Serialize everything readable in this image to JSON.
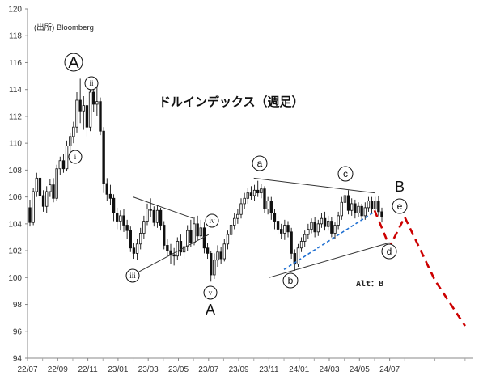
{
  "chart_data": {
    "type": "candlestick",
    "title": "ドルインデックス（週足）",
    "source": "(出所)  Bloomberg",
    "alt_note": "Alt：B",
    "ylim": [
      94,
      120
    ],
    "y_ticks": [
      "94",
      "96",
      "98",
      "100",
      "102",
      "104",
      "106",
      "108",
      "110",
      "112",
      "114",
      "116",
      "118",
      "120"
    ],
    "x_ticks": [
      "22/07",
      "22/09",
      "22/11",
      "23/01",
      "23/03",
      "23/05",
      "23/07",
      "23/09",
      "23/11",
      "24/01",
      "24/03",
      "24/05",
      "24/07"
    ],
    "grid": false,
    "colors": {
      "candle": "#111111",
      "forecast": "#cc0000",
      "trend_blue": "#1f6fd1",
      "trendline": "#333333"
    },
    "candles": [
      [
        105.2,
        104.1,
        105.8,
        103.8
      ],
      [
        104.1,
        106.4,
        106.7,
        103.9
      ],
      [
        106.4,
        107.4,
        107.8,
        106.0
      ],
      [
        107.4,
        106.1,
        108.0,
        105.7
      ],
      [
        106.1,
        105.3,
        106.5,
        104.9
      ],
      [
        105.3,
        106.4,
        106.8,
        104.8
      ],
      [
        106.4,
        106.9,
        107.3,
        106.0
      ],
      [
        106.9,
        105.9,
        107.4,
        105.6
      ],
      [
        105.9,
        108.1,
        108.4,
        105.7
      ],
      [
        108.1,
        108.7,
        109.0,
        107.6
      ],
      [
        108.7,
        108.1,
        109.2,
        107.8
      ],
      [
        108.1,
        109.8,
        110.2,
        107.9
      ],
      [
        109.8,
        110.5,
        110.8,
        109.2
      ],
      [
        110.5,
        111.2,
        111.6,
        110.0
      ],
      [
        111.2,
        113.2,
        113.8,
        110.8
      ],
      [
        113.2,
        112.4,
        114.8,
        111.5
      ],
      [
        112.4,
        112.8,
        113.5,
        111.0
      ],
      [
        112.8,
        111.2,
        113.4,
        110.5
      ],
      [
        111.2,
        113.8,
        114.1,
        110.9
      ],
      [
        113.8,
        112.9,
        114.6,
        112.3
      ],
      [
        112.9,
        113.1,
        114.2,
        112.0
      ],
      [
        113.1,
        110.9,
        113.4,
        110.6
      ],
      [
        110.9,
        107.0,
        111.2,
        106.3
      ],
      [
        107.0,
        106.2,
        107.4,
        105.7
      ],
      [
        106.2,
        105.9,
        106.9,
        105.4
      ],
      [
        105.9,
        104.8,
        106.2,
        104.2
      ],
      [
        104.8,
        104.2,
        105.2,
        103.6
      ],
      [
        104.2,
        104.6,
        105.0,
        103.5
      ],
      [
        104.6,
        103.9,
        105.1,
        103.4
      ],
      [
        103.9,
        103.5,
        104.3,
        102.9
      ],
      [
        103.5,
        102.2,
        103.8,
        101.9
      ],
      [
        102.2,
        101.8,
        102.6,
        101.4
      ],
      [
        101.8,
        102.5,
        102.9,
        101.3
      ],
      [
        102.5,
        103.3,
        103.7,
        102.1
      ],
      [
        103.3,
        104.2,
        104.6,
        102.9
      ],
      [
        104.2,
        105.1,
        105.5,
        103.9
      ],
      [
        105.1,
        105.0,
        105.9,
        104.5
      ],
      [
        105.0,
        104.1,
        105.3,
        103.8
      ],
      [
        104.1,
        105.0,
        105.4,
        103.7
      ],
      [
        105.0,
        103.9,
        105.2,
        103.5
      ],
      [
        103.9,
        102.4,
        104.2,
        102.1
      ],
      [
        102.4,
        102.0,
        102.9,
        101.6
      ],
      [
        102.0,
        101.7,
        102.5,
        101.0
      ],
      [
        101.7,
        101.6,
        102.2,
        100.9
      ],
      [
        101.6,
        102.7,
        103.0,
        101.3
      ],
      [
        102.7,
        101.9,
        103.2,
        101.6
      ],
      [
        101.9,
        102.3,
        102.8,
        101.4
      ],
      [
        102.3,
        103.5,
        103.9,
        102.0
      ],
      [
        103.5,
        102.6,
        104.3,
        102.3
      ],
      [
        102.6,
        104.0,
        104.5,
        102.4
      ],
      [
        104.0,
        103.1,
        104.6,
        102.8
      ],
      [
        103.1,
        103.7,
        104.3,
        102.9
      ],
      [
        103.7,
        102.2,
        104.1,
        101.8
      ],
      [
        102.2,
        101.8,
        102.6,
        101.4
      ],
      [
        101.8,
        100.2,
        102.0,
        99.7
      ],
      [
        100.2,
        101.3,
        101.8,
        99.9
      ],
      [
        101.3,
        101.9,
        102.4,
        100.8
      ],
      [
        101.9,
        101.4,
        102.3,
        101.0
      ],
      [
        101.4,
        102.5,
        102.9,
        101.2
      ],
      [
        102.5,
        103.2,
        103.5,
        102.1
      ],
      [
        103.2,
        103.9,
        104.2,
        102.9
      ],
      [
        103.9,
        104.4,
        104.8,
        103.6
      ],
      [
        104.4,
        104.7,
        105.1,
        104.0
      ],
      [
        104.7,
        105.5,
        105.9,
        104.4
      ],
      [
        105.5,
        105.9,
        106.3,
        105.1
      ],
      [
        105.9,
        106.3,
        106.7,
        105.5
      ],
      [
        106.3,
        106.1,
        106.8,
        105.8
      ],
      [
        106.1,
        106.5,
        106.9,
        105.7
      ],
      [
        106.5,
        106.3,
        107.2,
        106.0
      ],
      [
        106.3,
        106.6,
        107.0,
        105.9
      ],
      [
        106.6,
        105.1,
        106.8,
        104.8
      ],
      [
        105.1,
        105.7,
        106.0,
        104.7
      ],
      [
        105.7,
        104.8,
        106.0,
        104.3
      ],
      [
        104.8,
        104.2,
        105.1,
        103.6
      ],
      [
        104.2,
        103.6,
        104.6,
        103.2
      ],
      [
        103.6,
        103.3,
        104.0,
        102.9
      ],
      [
        103.3,
        103.9,
        104.3,
        102.8
      ],
      [
        103.9,
        103.4,
        104.2,
        103.0
      ],
      [
        103.4,
        101.8,
        103.7,
        101.4
      ],
      [
        101.8,
        101.0,
        102.1,
        100.5
      ],
      [
        101.0,
        102.2,
        102.5,
        100.8
      ],
      [
        102.2,
        102.7,
        103.0,
        101.9
      ],
      [
        102.7,
        103.2,
        103.5,
        102.3
      ],
      [
        103.2,
        103.6,
        104.0,
        102.9
      ],
      [
        103.6,
        104.1,
        104.4,
        103.3
      ],
      [
        104.1,
        103.4,
        104.5,
        103.0
      ],
      [
        103.4,
        104.0,
        104.3,
        103.1
      ],
      [
        104.0,
        104.4,
        104.8,
        103.7
      ],
      [
        104.4,
        103.8,
        104.9,
        103.5
      ],
      [
        103.8,
        104.2,
        104.6,
        103.5
      ],
      [
        104.2,
        103.3,
        104.5,
        103.0
      ],
      [
        103.3,
        103.9,
        104.1,
        102.9
      ],
      [
        103.9,
        104.6,
        104.9,
        103.6
      ],
      [
        104.6,
        105.6,
        106.0,
        104.3
      ],
      [
        105.6,
        106.1,
        106.4,
        105.2
      ],
      [
        106.1,
        105.0,
        106.5,
        104.7
      ],
      [
        105.0,
        105.5,
        105.9,
        104.6
      ],
      [
        105.5,
        104.8,
        105.8,
        104.4
      ],
      [
        104.8,
        105.3,
        105.6,
        104.5
      ],
      [
        105.3,
        104.6,
        105.5,
        104.3
      ],
      [
        104.6,
        105.2,
        105.6,
        104.3
      ],
      [
        105.2,
        105.7,
        106.0,
        104.9
      ],
      [
        105.7,
        105.1,
        106.0,
        104.8
      ],
      [
        105.1,
        105.7,
        106.0,
        104.8
      ],
      [
        105.7,
        104.9,
        106.1,
        104.6
      ],
      [
        104.9,
        104.5,
        105.2,
        104.1
      ]
    ],
    "forecast_path": [
      {
        "date": "24/06",
        "value": 105.0
      },
      {
        "date": "24/07",
        "value": 102.3
      },
      {
        "date": "24/08",
        "value": 104.5
      },
      {
        "date": "24/10",
        "value": 99.8
      },
      {
        "date": "24/12",
        "value": 96.4
      }
    ],
    "trendlines": [
      {
        "style": "solid",
        "from": {
          "date": "23/02",
          "value": 106.0
        },
        "to": {
          "date": "23/06",
          "value": 104.4
        }
      },
      {
        "style": "solid",
        "from": {
          "date": "23/02",
          "value": 100.2
        },
        "to": {
          "date": "23/07",
          "value": 103.2
        }
      },
      {
        "style": "solid",
        "from": {
          "date": "23/10",
          "value": 107.4
        },
        "to": {
          "date": "24/06",
          "value": 106.3
        }
      },
      {
        "style": "solid",
        "from": {
          "date": "23/11",
          "value": 100.0
        },
        "to": {
          "date": "24/07",
          "value": 102.6
        }
      },
      {
        "style": "dashed",
        "from": {
          "date": "23/12",
          "value": 100.6
        },
        "to": {
          "date": "24/06",
          "value": 104.9
        }
      }
    ],
    "wave_labels": {
      "A_top": "A",
      "i": "i",
      "ii": "ii",
      "iii": "iii",
      "iv": "iv",
      "v": "v",
      "A_bottom": "A",
      "a": "a",
      "b": "b",
      "c": "c",
      "d": "d",
      "e": "e",
      "B": "B"
    }
  }
}
